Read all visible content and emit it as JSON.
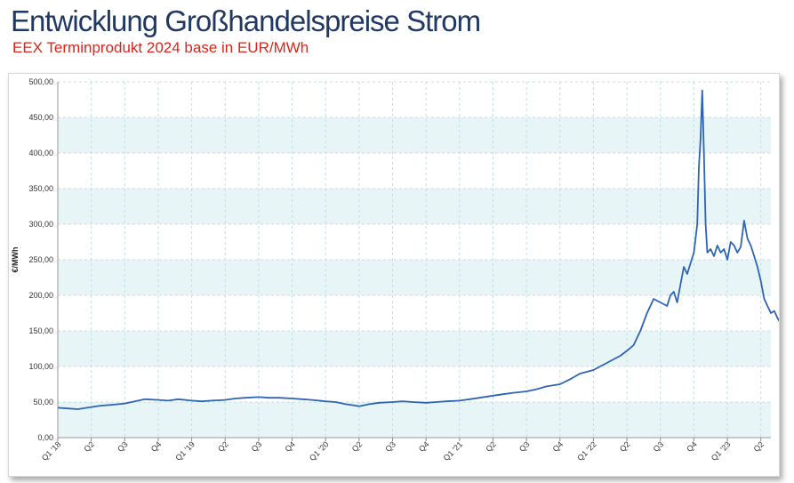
{
  "header": {
    "title": "Entwicklung Großhandelspreise Strom",
    "subtitle": "EEX Terminprodukt 2024 base in EUR/MWh"
  },
  "chart_data": {
    "type": "line",
    "title": "Entwicklung Großhandelspreise Strom",
    "subtitle": "EEX Terminprodukt 2024 base in EUR/MWh",
    "xlabel": "",
    "ylabel": "€/MWh",
    "ylim": [
      0,
      500
    ],
    "yticks": [
      "0,00",
      "50,00",
      "100,00",
      "150,00",
      "200,00",
      "250,00",
      "300,00",
      "350,00",
      "400,00",
      "450,00",
      "500,00"
    ],
    "xticks": [
      "Q1 '18",
      "Q2",
      "Q3",
      "Q4",
      "Q1 '19",
      "Q2",
      "Q3",
      "Q4",
      "Q1 '20",
      "Q2",
      "Q3",
      "Q4",
      "Q1 '21",
      "Q2",
      "Q3",
      "Q4",
      "Q1 '22",
      "Q2",
      "Q3",
      "Q4",
      "Q1 '23",
      "Q2"
    ],
    "grid": true,
    "series": [
      {
        "color": "#2e64b4",
        "points": [
          [
            0.0,
            42
          ],
          [
            0.3,
            41
          ],
          [
            0.6,
            40
          ],
          [
            1.0,
            43
          ],
          [
            1.3,
            45
          ],
          [
            1.6,
            46
          ],
          [
            2.0,
            48
          ],
          [
            2.3,
            51
          ],
          [
            2.6,
            54
          ],
          [
            3.0,
            53
          ],
          [
            3.3,
            52
          ],
          [
            3.6,
            54
          ],
          [
            4.0,
            52
          ],
          [
            4.3,
            51
          ],
          [
            4.6,
            52
          ],
          [
            5.0,
            53
          ],
          [
            5.3,
            55
          ],
          [
            5.6,
            56
          ],
          [
            6.0,
            57
          ],
          [
            6.3,
            56
          ],
          [
            6.6,
            56
          ],
          [
            7.0,
            55
          ],
          [
            7.3,
            54
          ],
          [
            7.6,
            53
          ],
          [
            8.0,
            51
          ],
          [
            8.3,
            50
          ],
          [
            8.6,
            47
          ],
          [
            8.9,
            45
          ],
          [
            9.0,
            44
          ],
          [
            9.3,
            47
          ],
          [
            9.6,
            49
          ],
          [
            10.0,
            50
          ],
          [
            10.3,
            51
          ],
          [
            10.6,
            50
          ],
          [
            11.0,
            49
          ],
          [
            11.3,
            50
          ],
          [
            11.6,
            51
          ],
          [
            12.0,
            52
          ],
          [
            12.3,
            54
          ],
          [
            12.6,
            56
          ],
          [
            13.0,
            59
          ],
          [
            13.3,
            61
          ],
          [
            13.6,
            63
          ],
          [
            14.0,
            65
          ],
          [
            14.3,
            68
          ],
          [
            14.6,
            72
          ],
          [
            15.0,
            75
          ],
          [
            15.3,
            82
          ],
          [
            15.6,
            90
          ],
          [
            16.0,
            95
          ],
          [
            16.2,
            100
          ],
          [
            16.4,
            105
          ],
          [
            16.6,
            110
          ],
          [
            16.8,
            115
          ],
          [
            17.0,
            122
          ],
          [
            17.2,
            130
          ],
          [
            17.4,
            150
          ],
          [
            17.6,
            175
          ],
          [
            17.8,
            195
          ],
          [
            18.0,
            190
          ],
          [
            18.2,
            185
          ],
          [
            18.3,
            200
          ],
          [
            18.4,
            205
          ],
          [
            18.5,
            190
          ],
          [
            18.6,
            215
          ],
          [
            18.7,
            240
          ],
          [
            18.8,
            230
          ],
          [
            18.9,
            245
          ],
          [
            19.0,
            260
          ],
          [
            19.1,
            300
          ],
          [
            19.15,
            380
          ],
          [
            19.2,
            420
          ],
          [
            19.25,
            488
          ],
          [
            19.3,
            400
          ],
          [
            19.35,
            300
          ],
          [
            19.4,
            260
          ],
          [
            19.5,
            265
          ],
          [
            19.6,
            255
          ],
          [
            19.7,
            270
          ],
          [
            19.8,
            260
          ],
          [
            19.9,
            265
          ],
          [
            20.0,
            250
          ],
          [
            20.1,
            275
          ],
          [
            20.2,
            270
          ],
          [
            20.3,
            260
          ],
          [
            20.4,
            268
          ],
          [
            20.5,
            305
          ],
          [
            20.6,
            280
          ],
          [
            20.7,
            270
          ],
          [
            20.8,
            255
          ],
          [
            20.9,
            240
          ],
          [
            21.0,
            220
          ],
          [
            21.1,
            195
          ],
          [
            21.2,
            185
          ],
          [
            21.3,
            175
          ],
          [
            21.4,
            178
          ],
          [
            21.5,
            168
          ],
          [
            21.6,
            160
          ],
          [
            21.7,
            150
          ],
          [
            21.8,
            148
          ],
          [
            22.0,
            155
          ],
          [
            22.2,
            165
          ],
          [
            22.4,
            160
          ],
          [
            22.6,
            158
          ],
          [
            22.7,
            145
          ],
          [
            22.8,
            132
          ],
          [
            22.9,
            138
          ],
          [
            23.0,
            160
          ],
          [
            23.1,
            150
          ],
          [
            23.2,
            153
          ]
        ]
      }
    ]
  }
}
